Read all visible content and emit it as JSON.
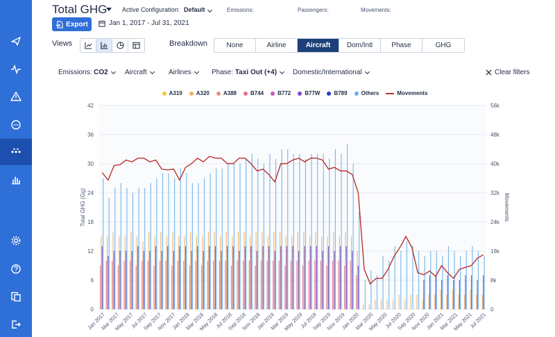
{
  "header": {
    "title": "Total GHG",
    "active_config_label": "Active Configuration:",
    "active_config_value": "Default",
    "stats": [
      "Emissions:",
      "Passengers:",
      "Movements:"
    ],
    "export_label": "Export",
    "date_range": "Jan 1, 2017 - Jul 31, 2021"
  },
  "views": {
    "label": "Views",
    "buttons": [
      "line-chart-icon",
      "bar-chart-icon",
      "pie-chart-icon",
      "table-icon"
    ],
    "active": "bar-chart-icon"
  },
  "breakdown": {
    "label": "Breakdown",
    "tabs": [
      "None",
      "Airline",
      "Aircraft",
      "Dom/Intl",
      "Phase",
      "GHG"
    ],
    "active": "Aircraft"
  },
  "filters": {
    "emissions_label": "Emissions:",
    "emissions_value": "CO2",
    "aircraft": "Aircraft",
    "airlines": "Airlines",
    "phase_label": "Phase:",
    "phase_value": "Taxi Out (+4)",
    "domestic": "Domestic/International",
    "clear": "Clear filters"
  },
  "sidebar": [
    "plane-icon",
    "activity-icon",
    "alert-icon",
    "chat-icon",
    "dots-icon",
    "bar-chart-icon",
    "gear-icon",
    "help-icon",
    "copy-icon",
    "logout-icon"
  ],
  "colors": {
    "sidebar": "#2f6fd8",
    "accent": "#2f6fd8",
    "movements": "#b8322f"
  },
  "chart_data": {
    "type": "bar",
    "legend": [
      {
        "name": "A319",
        "color": "#f0c93a"
      },
      {
        "name": "A320",
        "color": "#f0b060"
      },
      {
        "name": "A388",
        "color": "#ea9078"
      },
      {
        "name": "B744",
        "color": "#e5708a"
      },
      {
        "name": "B772",
        "color": "#c25bbf"
      },
      {
        "name": "B77W",
        "color": "#8a44c9"
      },
      {
        "name": "B789",
        "color": "#2a3ec4"
      },
      {
        "name": "Others",
        "color": "#6aaee8"
      },
      {
        "name": "Movements",
        "color": "#b8322f",
        "line": true
      }
    ],
    "ylabel": "Total GHG (Gg)",
    "y2label": "Movements",
    "yticks": [
      "0",
      "6",
      "12",
      "18",
      "24",
      "30",
      "36",
      "42"
    ],
    "y2ticks": [
      "0",
      "8k",
      "16k",
      "24k",
      "32k",
      "40k",
      "48k",
      "56k"
    ],
    "ylim": [
      0,
      42
    ],
    "y2lim": [
      0,
      56000
    ],
    "xticks": [
      "Jan 2017",
      "Mar 2017",
      "May 2017",
      "Jul 2017",
      "Sep 2017",
      "Nov 2017",
      "Jan 2018",
      "Mar 2018",
      "May 2018",
      "Jul 2018",
      "Sep 2018",
      "Nov 2018",
      "Jan 2019",
      "Mar 2019",
      "May 2019",
      "Jul 2019",
      "Sep 2019",
      "Nov 2019",
      "Jan 2020",
      "Mar 2020",
      "May 2020",
      "Jul 2020",
      "Sep 2020",
      "Nov 2020",
      "Jan 2021",
      "Mar 2021",
      "May 2021",
      "Jul 2021"
    ],
    "others": [
      27,
      23,
      25,
      26,
      25,
      24,
      25,
      25,
      26,
      27,
      28,
      28,
      27,
      29,
      28,
      26,
      26,
      27,
      28,
      29,
      29,
      30,
      30,
      30,
      31,
      32,
      31,
      30,
      32,
      31,
      33,
      33,
      32,
      32,
      31,
      32,
      32,
      32,
      31,
      33,
      32,
      34,
      30,
      20,
      6,
      8,
      7,
      11,
      10,
      13,
      12,
      14,
      13,
      12,
      11,
      12,
      12,
      11,
      13,
      12,
      11,
      12,
      13,
      12,
      11
    ],
    "orange": [
      15,
      15,
      16,
      15,
      15,
      16,
      15,
      14,
      16,
      15,
      16,
      15,
      16,
      15,
      15,
      16,
      15,
      15,
      16,
      16,
      15,
      16,
      15,
      16,
      16,
      15,
      16,
      16,
      15,
      16,
      16,
      15,
      15,
      16,
      16,
      15,
      16,
      15,
      15,
      16,
      15,
      16,
      15,
      12,
      1,
      1,
      2,
      2,
      2,
      2,
      3,
      2,
      3,
      3,
      2,
      3,
      3,
      4,
      3,
      4,
      3,
      3,
      4,
      3,
      3
    ],
    "purple": [
      13,
      11,
      12,
      12,
      12,
      12,
      13,
      12,
      12,
      13,
      12,
      13,
      12,
      13,
      13,
      12,
      13,
      12,
      13,
      13,
      12,
      13,
      13,
      12,
      13,
      13,
      12,
      13,
      13,
      12,
      13,
      13,
      13,
      12,
      13,
      13,
      13,
      12,
      13,
      12,
      13,
      13,
      12,
      9,
      0,
      0,
      0,
      0,
      0,
      0,
      0,
      0,
      0,
      0,
      6,
      7,
      7,
      6,
      7,
      6,
      6,
      7,
      7,
      6,
      7
    ],
    "pink": [
      9,
      10,
      10,
      9,
      10,
      10,
      9,
      10,
      10,
      9,
      10,
      10,
      9,
      10,
      10,
      9,
      10,
      9,
      10,
      10,
      10,
      10,
      9,
      10,
      10,
      10,
      9,
      10,
      10,
      10,
      10,
      9,
      10,
      10,
      9,
      10,
      10,
      10,
      9,
      10,
      10,
      9,
      10,
      7,
      0,
      0,
      0,
      0,
      0,
      0,
      0,
      0,
      0,
      0,
      0,
      0,
      0,
      0,
      0,
      0,
      0,
      0,
      0,
      0,
      0
    ],
    "movements": [
      37500,
      35500,
      39500,
      39700,
      41000,
      40500,
      41500,
      41500,
      40500,
      41000,
      38500,
      38300,
      38500,
      35500,
      39000,
      40000,
      41500,
      40500,
      42000,
      41500,
      41500,
      40000,
      40000,
      41500,
      41500,
      40000,
      38000,
      38500,
      37000,
      35000,
      40000,
      40000,
      41000,
      41500,
      40500,
      41500,
      41500,
      41000,
      38500,
      39000,
      38000,
      38000,
      37000,
      32000,
      11000,
      7000,
      8500,
      8500,
      11000,
      14500,
      17000,
      20000,
      17000,
      10000,
      9500,
      10500,
      9000,
      12000,
      10000,
      8500,
      11000,
      11500,
      12000,
      14000,
      15000
    ]
  }
}
